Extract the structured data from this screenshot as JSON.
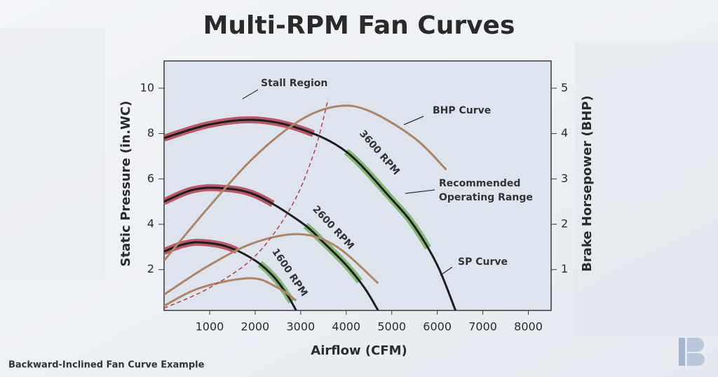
{
  "chart_data": {
    "type": "line",
    "title": "Multi-RPM Fan Curves",
    "x_label": "Airflow (CFM)",
    "y_label": "Static Pressure (in.WC)",
    "y2_label": "Brake Horsepower (BHP)",
    "footnote": "Backward-Inclined Fan Curve Example",
    "xlim": [
      0,
      8500
    ],
    "xticks": [
      1000,
      2000,
      3000,
      4000,
      5000,
      6000,
      7000,
      8000
    ],
    "ylim": [
      0.2,
      11.2
    ],
    "yticks": [
      2,
      4,
      6,
      8,
      10
    ],
    "y2lim": [
      0.1,
      5.6
    ],
    "y2ticks": [
      1,
      2,
      3,
      4,
      5
    ],
    "stall_color": "#b5485a",
    "recommended_color": "#7cb36a",
    "series": [
      {
        "name": "3600 RPM",
        "color": "#1e1e1e",
        "x": [
          0,
          1000,
          2000,
          3000,
          4000,
          5000,
          5500,
          6000,
          6400
        ],
        "values": [
          7.8,
          8.4,
          8.6,
          8.2,
          7.2,
          5.1,
          3.9,
          2.2,
          0.2
        ],
        "stall_range": [
          0,
          3300
        ],
        "recommended_range": [
          4000,
          5800
        ]
      },
      {
        "name": "2600 RPM",
        "color": "#1e1e1e",
        "x": [
          0,
          600,
          1200,
          2000,
          3000,
          3500,
          4000,
          4400,
          4700
        ],
        "values": [
          5.0,
          5.5,
          5.6,
          5.3,
          4.1,
          3.2,
          2.2,
          1.2,
          0.2
        ],
        "stall_range": [
          0,
          2400
        ],
        "recommended_range": [
          3100,
          4300
        ]
      },
      {
        "name": "1600 RPM",
        "color": "#1e1e1e",
        "x": [
          0,
          400,
          800,
          1400,
          2000,
          2400,
          2700,
          2900
        ],
        "values": [
          2.8,
          3.1,
          3.2,
          3.0,
          2.4,
          1.7,
          0.9,
          0.2
        ],
        "stall_range": [
          0,
          1600
        ],
        "recommended_range": [
          2100,
          2800
        ]
      },
      {
        "color": "#b08565",
        "axis": "y2",
        "x": [
          0,
          1000,
          2000,
          3000,
          3800,
          4500,
          5500,
          6200
        ],
        "values": [
          1.2,
          2.4,
          3.5,
          4.3,
          4.6,
          4.5,
          3.9,
          3.2
        ]
      },
      {
        "color": "#b08565",
        "axis": "y2",
        "x": [
          0,
          1000,
          2000,
          3000,
          3800,
          4700
        ],
        "values": [
          0.45,
          1.1,
          1.6,
          1.78,
          1.5,
          0.7
        ]
      },
      {
        "color": "#b08565",
        "axis": "y2",
        "x": [
          0,
          800,
          1900,
          2500,
          2900
        ],
        "values": [
          0.2,
          0.6,
          0.81,
          0.6,
          0.32
        ]
      },
      {
        "color": "#b5485a",
        "line_style": "dashed",
        "x": [
          0,
          1000,
          2000,
          2800,
          3300,
          3600
        ],
        "values": [
          0.3,
          1.2,
          2.6,
          4.8,
          7.2,
          9.5
        ]
      }
    ],
    "annotations": [
      {
        "lines": [
          "Stall Region"
        ]
      },
      {
        "lines": [
          "BHP Curve"
        ]
      },
      {
        "lines": [
          "Recommended",
          "Operating Range"
        ]
      },
      {
        "lines": [
          "SP Curve"
        ]
      }
    ]
  }
}
